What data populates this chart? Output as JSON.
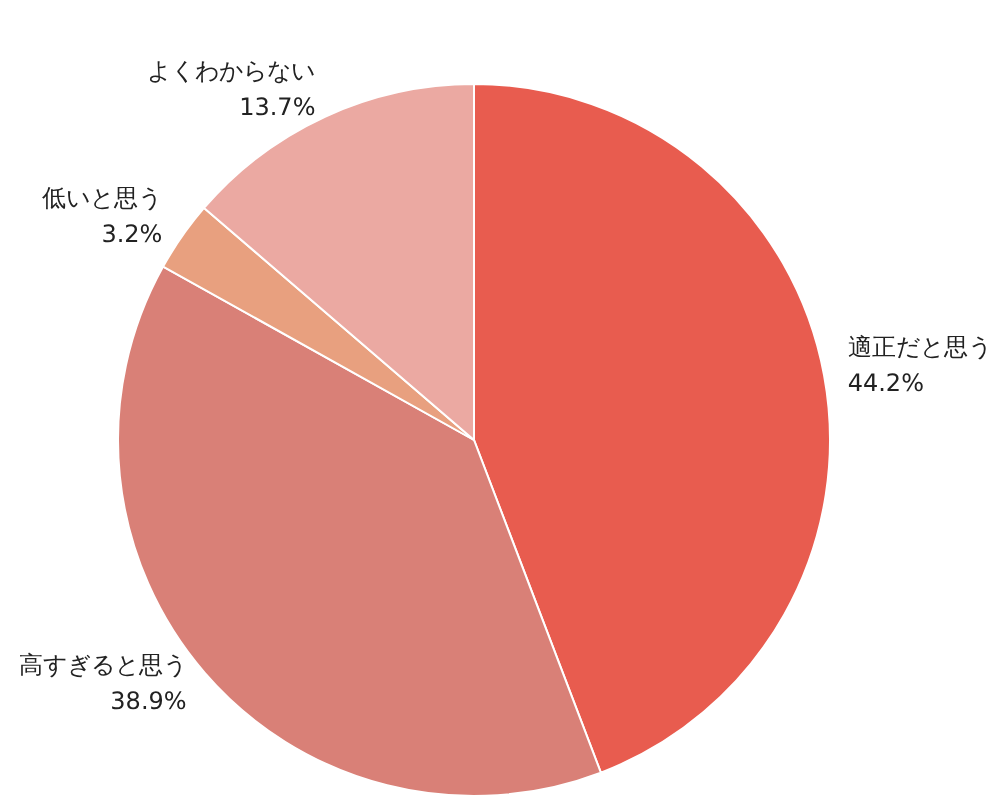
{
  "chart_data": {
    "type": "pie",
    "categories": [
      "適正だと思う",
      "高すぎると思う",
      "低いと思う",
      "よくわからない"
    ],
    "values": [
      44.2,
      38.9,
      3.2,
      13.7
    ],
    "value_labels": [
      "44.2%",
      "38.9%",
      "3.2%",
      "13.7%"
    ],
    "colors": [
      "#e85c4f",
      "#d98077",
      "#e8a07f",
      "#eba9a2"
    ],
    "legend": false
  }
}
